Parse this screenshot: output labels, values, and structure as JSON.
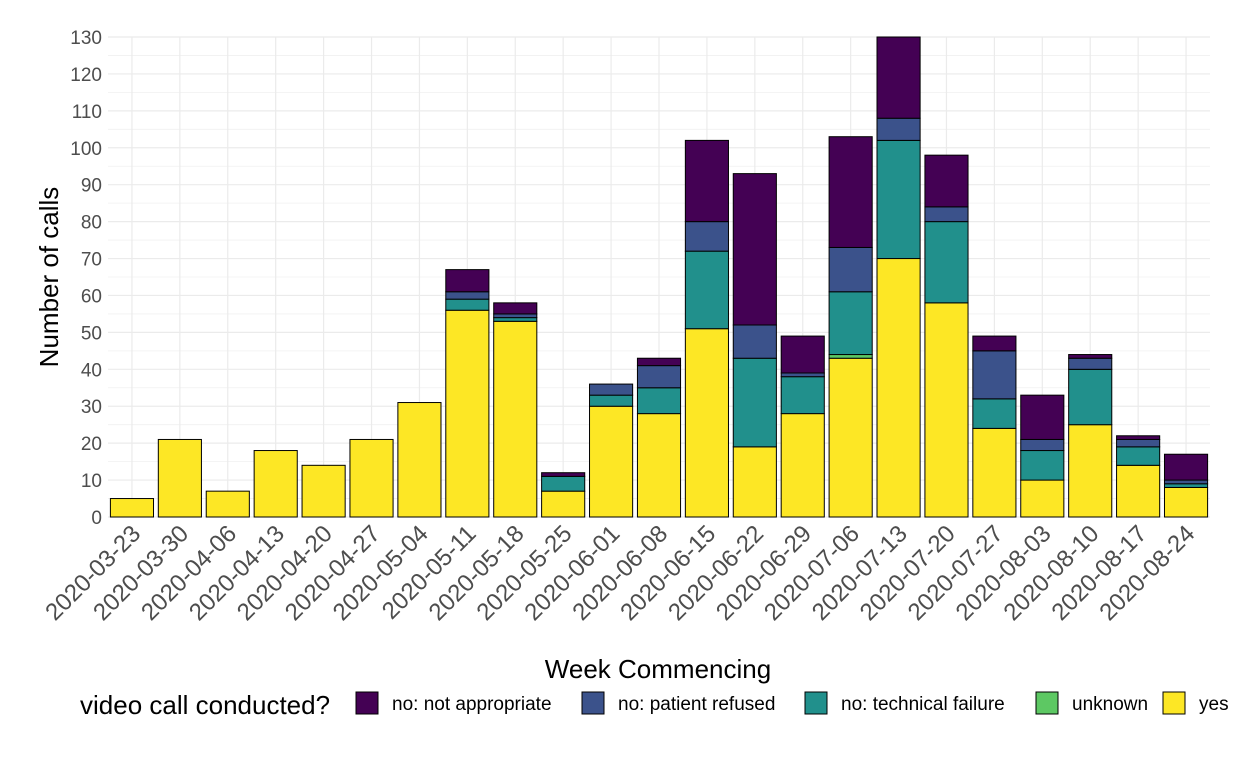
{
  "chart_data": {
    "type": "bar",
    "stacked": true,
    "xlabel": "Week Commencing",
    "ylabel": "Number of calls",
    "ylim": [
      0,
      130
    ],
    "y_ticks": [
      0,
      10,
      20,
      30,
      40,
      50,
      60,
      70,
      80,
      90,
      100,
      110,
      120,
      130
    ],
    "grid": true,
    "legend": {
      "title": "video call conducted?",
      "placement": "bottom"
    },
    "categories": [
      "2020-03-23",
      "2020-03-30",
      "2020-04-06",
      "2020-04-13",
      "2020-04-20",
      "2020-04-27",
      "2020-05-04",
      "2020-05-11",
      "2020-05-18",
      "2020-05-25",
      "2020-06-01",
      "2020-06-08",
      "2020-06-15",
      "2020-06-22",
      "2020-06-29",
      "2020-07-06",
      "2020-07-13",
      "2020-07-20",
      "2020-07-27",
      "2020-08-03",
      "2020-08-10",
      "2020-08-17",
      "2020-08-24"
    ],
    "series": [
      {
        "name": "yes",
        "color": "#FDE725",
        "values": [
          5,
          21,
          7,
          18,
          14,
          21,
          31,
          56,
          53,
          7,
          30,
          28,
          51,
          19,
          28,
          43,
          70,
          58,
          24,
          10,
          25,
          14,
          8
        ]
      },
      {
        "name": "unknown",
        "color": "#5DC863",
        "values": [
          0,
          0,
          0,
          0,
          0,
          0,
          0,
          0,
          0,
          0,
          0,
          0,
          0,
          0,
          0,
          1,
          0,
          0,
          0,
          0,
          0,
          0,
          0
        ]
      },
      {
        "name": "no: technical failure",
        "color": "#21908C",
        "values": [
          0,
          0,
          0,
          0,
          0,
          0,
          0,
          3,
          1,
          4,
          3,
          7,
          21,
          24,
          10,
          17,
          32,
          22,
          8,
          8,
          15,
          5,
          1
        ]
      },
      {
        "name": "no: patient refused",
        "color": "#3B528B",
        "values": [
          0,
          0,
          0,
          0,
          0,
          0,
          0,
          2,
          1,
          0,
          3,
          6,
          8,
          9,
          1,
          12,
          6,
          4,
          13,
          3,
          3,
          2,
          1
        ]
      },
      {
        "name": "no: not appropriate",
        "color": "#440154",
        "values": [
          0,
          0,
          0,
          0,
          0,
          0,
          0,
          6,
          3,
          1,
          0,
          2,
          22,
          41,
          10,
          30,
          22,
          14,
          4,
          12,
          1,
          1,
          7
        ]
      }
    ],
    "legend_order": [
      "no: not appropriate",
      "no: patient refused",
      "no: technical failure",
      "unknown",
      "yes"
    ]
  }
}
